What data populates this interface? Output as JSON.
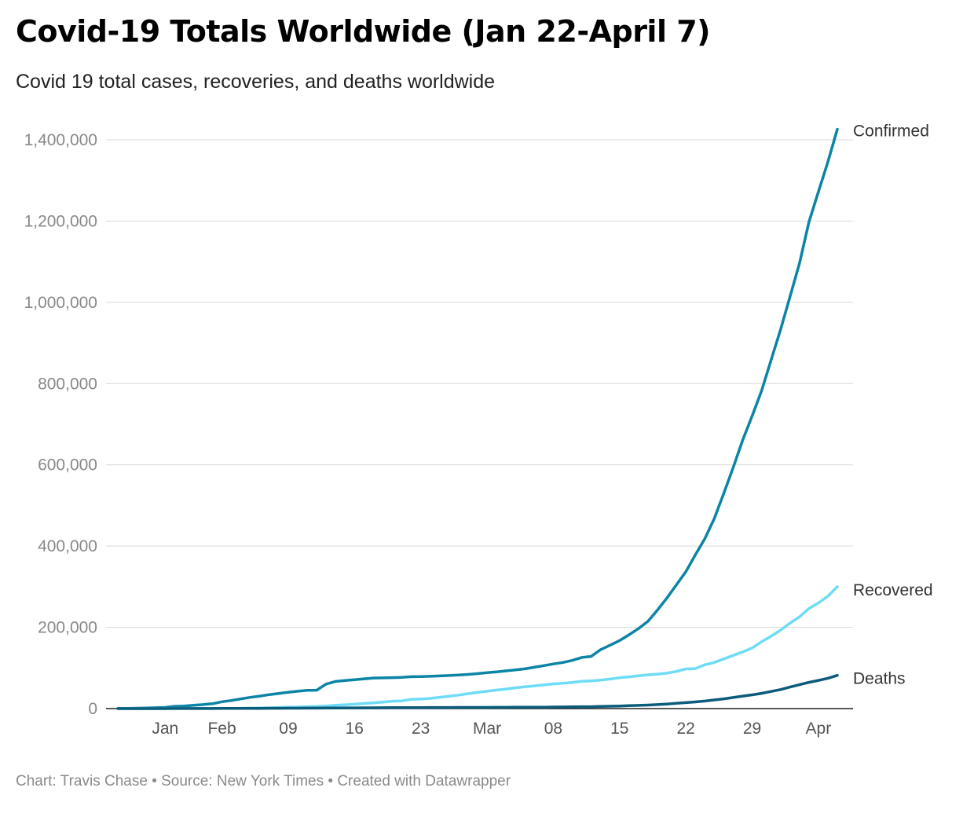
{
  "title": "Covid-19 Totals Worldwide (Jan 22-April 7)",
  "subtitle": "Covid 19 total cases, recoveries, and deaths worldwide",
  "footer": {
    "chart_by": "Chart: Travis Chase",
    "source": "Source: New York Times",
    "created_with": "Created with Datawrapper",
    "separator": "•"
  },
  "chart_data": {
    "type": "line",
    "title": "Covid-19 Totals Worldwide (Jan 22-April 7)",
    "subtitle": "Covid 19 total cases, recoveries, and deaths worldwide",
    "xlabel": "",
    "ylabel": "",
    "x_range": [
      "2020-01-22",
      "2020-04-07"
    ],
    "ylim": [
      0,
      1450000
    ],
    "yticks": [
      0,
      200000,
      400000,
      600000,
      800000,
      1000000,
      1200000,
      1400000
    ],
    "ytick_labels": [
      "0",
      "200,000",
      "400,000",
      "600,000",
      "800,000",
      "1,000,000",
      "1,200,000",
      "1,400,000"
    ],
    "xticks": [
      {
        "date": "2020-01-27",
        "label": "Jan"
      },
      {
        "date": "2020-02-02",
        "label": "Feb"
      },
      {
        "date": "2020-02-09",
        "label": "09"
      },
      {
        "date": "2020-02-16",
        "label": "16"
      },
      {
        "date": "2020-02-23",
        "label": "23"
      },
      {
        "date": "2020-03-01",
        "label": "Mar"
      },
      {
        "date": "2020-03-08",
        "label": "08"
      },
      {
        "date": "2020-03-15",
        "label": "15"
      },
      {
        "date": "2020-03-22",
        "label": "22"
      },
      {
        "date": "2020-03-29",
        "label": "29"
      },
      {
        "date": "2020-04-05",
        "label": "Apr"
      }
    ],
    "grid": true,
    "legend": "direct labels at line ends (right)",
    "series": [
      {
        "name": "Confirmed",
        "color": "#0b84a5",
        "points": [
          [
            "2020-01-22",
            555
          ],
          [
            "2020-01-23",
            654
          ],
          [
            "2020-01-24",
            941
          ],
          [
            "2020-01-25",
            1434
          ],
          [
            "2020-01-26",
            2118
          ],
          [
            "2020-01-27",
            2927
          ],
          [
            "2020-01-28",
            5578
          ],
          [
            "2020-01-29",
            6166
          ],
          [
            "2020-01-30",
            8234
          ],
          [
            "2020-01-31",
            9927
          ],
          [
            "2020-02-01",
            12038
          ],
          [
            "2020-02-02",
            16787
          ],
          [
            "2020-02-03",
            19881
          ],
          [
            "2020-02-04",
            23892
          ],
          [
            "2020-02-05",
            27635
          ],
          [
            "2020-02-06",
            30794
          ],
          [
            "2020-02-07",
            34391
          ],
          [
            "2020-02-08",
            37120
          ],
          [
            "2020-02-09",
            40150
          ],
          [
            "2020-02-10",
            42762
          ],
          [
            "2020-02-11",
            44802
          ],
          [
            "2020-02-12",
            45221
          ],
          [
            "2020-02-13",
            60368
          ],
          [
            "2020-02-14",
            66885
          ],
          [
            "2020-02-15",
            69030
          ],
          [
            "2020-02-16",
            71224
          ],
          [
            "2020-02-17",
            73258
          ],
          [
            "2020-02-18",
            75136
          ],
          [
            "2020-02-19",
            75639
          ],
          [
            "2020-02-20",
            76197
          ],
          [
            "2020-02-21",
            76819
          ],
          [
            "2020-02-22",
            78572
          ],
          [
            "2020-02-23",
            78958
          ],
          [
            "2020-02-24",
            79561
          ],
          [
            "2020-02-25",
            80406
          ],
          [
            "2020-02-26",
            81388
          ],
          [
            "2020-02-27",
            82746
          ],
          [
            "2020-02-28",
            84112
          ],
          [
            "2020-02-29",
            86011
          ],
          [
            "2020-03-01",
            88369
          ],
          [
            "2020-03-02",
            90306
          ],
          [
            "2020-03-03",
            92840
          ],
          [
            "2020-03-04",
            95120
          ],
          [
            "2020-03-05",
            97886
          ],
          [
            "2020-03-06",
            101801
          ],
          [
            "2020-03-07",
            105847
          ],
          [
            "2020-03-08",
            109821
          ],
          [
            "2020-03-09",
            113590
          ],
          [
            "2020-03-10",
            118620
          ],
          [
            "2020-03-11",
            125875
          ],
          [
            "2020-03-12",
            128352
          ],
          [
            "2020-03-13",
            145205
          ],
          [
            "2020-03-14",
            156101
          ],
          [
            "2020-03-15",
            167454
          ],
          [
            "2020-03-16",
            181574
          ],
          [
            "2020-03-17",
            197102
          ],
          [
            "2020-03-18",
            214821
          ],
          [
            "2020-03-19",
            242570
          ],
          [
            "2020-03-20",
            272208
          ],
          [
            "2020-03-21",
            304507
          ],
          [
            "2020-03-22",
            336953
          ],
          [
            "2020-03-23",
            378235
          ],
          [
            "2020-03-24",
            418045
          ],
          [
            "2020-03-25",
            467653
          ],
          [
            "2020-03-26",
            529591
          ],
          [
            "2020-03-27",
            593291
          ],
          [
            "2020-03-28",
            660693
          ],
          [
            "2020-03-29",
            720140
          ],
          [
            "2020-03-30",
            782389
          ],
          [
            "2020-03-31",
            857487
          ],
          [
            "2020-04-01",
            932605
          ],
          [
            "2020-04-02",
            1013466
          ],
          [
            "2020-04-03",
            1095917
          ],
          [
            "2020-04-04",
            1197405
          ],
          [
            "2020-04-05",
            1272115
          ],
          [
            "2020-04-06",
            1345101
          ],
          [
            "2020-04-07",
            1426096
          ]
        ]
      },
      {
        "name": "Recovered",
        "color": "#6fdcf7",
        "points": [
          [
            "2020-01-22",
            28
          ],
          [
            "2020-01-23",
            30
          ],
          [
            "2020-01-24",
            36
          ],
          [
            "2020-01-25",
            39
          ],
          [
            "2020-01-26",
            52
          ],
          [
            "2020-01-27",
            61
          ],
          [
            "2020-01-28",
            107
          ],
          [
            "2020-01-29",
            126
          ],
          [
            "2020-01-30",
            143
          ],
          [
            "2020-01-31",
            222
          ],
          [
            "2020-02-01",
            284
          ],
          [
            "2020-02-02",
            472
          ],
          [
            "2020-02-03",
            623
          ],
          [
            "2020-02-04",
            852
          ],
          [
            "2020-02-05",
            1124
          ],
          [
            "2020-02-06",
            1487
          ],
          [
            "2020-02-07",
            2011
          ],
          [
            "2020-02-08",
            2616
          ],
          [
            "2020-02-09",
            3244
          ],
          [
            "2020-02-10",
            3946
          ],
          [
            "2020-02-11",
            4683
          ],
          [
            "2020-02-12",
            5150
          ],
          [
            "2020-02-13",
            6295
          ],
          [
            "2020-02-14",
            8058
          ],
          [
            "2020-02-15",
            9395
          ],
          [
            "2020-02-16",
            10865
          ],
          [
            "2020-02-17",
            12583
          ],
          [
            "2020-02-18",
            14352
          ],
          [
            "2020-02-19",
            16121
          ],
          [
            "2020-02-20",
            18177
          ],
          [
            "2020-02-21",
            18890
          ],
          [
            "2020-02-22",
            22886
          ],
          [
            "2020-02-23",
            23394
          ],
          [
            "2020-02-24",
            25227
          ],
          [
            "2020-02-25",
            27905
          ],
          [
            "2020-02-26",
            30384
          ],
          [
            "2020-02-27",
            33277
          ],
          [
            "2020-02-28",
            36711
          ],
          [
            "2020-02-29",
            39782
          ],
          [
            "2020-03-01",
            42716
          ],
          [
            "2020-03-02",
            45602
          ],
          [
            "2020-03-03",
            48228
          ],
          [
            "2020-03-04",
            51170
          ],
          [
            "2020-03-05",
            53796
          ],
          [
            "2020-03-06",
            55865
          ],
          [
            "2020-03-07",
            58358
          ],
          [
            "2020-03-08",
            60694
          ],
          [
            "2020-03-09",
            62494
          ],
          [
            "2020-03-10",
            64404
          ],
          [
            "2020-03-11",
            67003
          ],
          [
            "2020-03-12",
            68324
          ],
          [
            "2020-03-13",
            70251
          ],
          [
            "2020-03-14",
            72624
          ],
          [
            "2020-03-15",
            76034
          ],
          [
            "2020-03-16",
            78088
          ],
          [
            "2020-03-17",
            80840
          ],
          [
            "2020-03-18",
            83207
          ],
          [
            "2020-03-19",
            84854
          ],
          [
            "2020-03-20",
            87256
          ],
          [
            "2020-03-21",
            91499
          ],
          [
            "2020-03-22",
            97704
          ],
          [
            "2020-03-23",
            98351
          ],
          [
            "2020-03-24",
            107890
          ],
          [
            "2020-03-25",
            113604
          ],
          [
            "2020-03-26",
            122150
          ],
          [
            "2020-03-27",
            130915
          ],
          [
            "2020-03-28",
            139415
          ],
          [
            "2020-03-29",
            149082
          ],
          [
            "2020-03-30",
            164566
          ],
          [
            "2020-03-31",
            178034
          ],
          [
            "2020-04-01",
            193177
          ],
          [
            "2020-04-02",
            210263
          ],
          [
            "2020-04-03",
            225796
          ],
          [
            "2020-04-04",
            246152
          ],
          [
            "2020-04-05",
            260012
          ],
          [
            "2020-04-06",
            276515
          ],
          [
            "2020-04-07",
            300054
          ]
        ]
      },
      {
        "name": "Deaths",
        "color": "#0b5c7a",
        "points": [
          [
            "2020-01-22",
            17
          ],
          [
            "2020-01-23",
            18
          ],
          [
            "2020-01-24",
            26
          ],
          [
            "2020-01-25",
            42
          ],
          [
            "2020-01-26",
            56
          ],
          [
            "2020-01-27",
            82
          ],
          [
            "2020-01-28",
            131
          ],
          [
            "2020-01-29",
            133
          ],
          [
            "2020-01-30",
            171
          ],
          [
            "2020-01-31",
            213
          ],
          [
            "2020-02-01",
            259
          ],
          [
            "2020-02-02",
            362
          ],
          [
            "2020-02-03",
            426
          ],
          [
            "2020-02-04",
            492
          ],
          [
            "2020-02-05",
            564
          ],
          [
            "2020-02-06",
            634
          ],
          [
            "2020-02-07",
            719
          ],
          [
            "2020-02-08",
            806
          ],
          [
            "2020-02-09",
            906
          ],
          [
            "2020-02-10",
            1013
          ],
          [
            "2020-02-11",
            1113
          ],
          [
            "2020-02-12",
            1118
          ],
          [
            "2020-02-13",
            1371
          ],
          [
            "2020-02-14",
            1523
          ],
          [
            "2020-02-15",
            1666
          ],
          [
            "2020-02-16",
            1770
          ],
          [
            "2020-02-17",
            1868
          ],
          [
            "2020-02-18",
            2007
          ],
          [
            "2020-02-19",
            2122
          ],
          [
            "2020-02-20",
            2247
          ],
          [
            "2020-02-21",
            2251
          ],
          [
            "2020-02-22",
            2458
          ],
          [
            "2020-02-23",
            2469
          ],
          [
            "2020-02-24",
            2629
          ],
          [
            "2020-02-25",
            2708
          ],
          [
            "2020-02-26",
            2770
          ],
          [
            "2020-02-27",
            2814
          ],
          [
            "2020-02-28",
            2872
          ],
          [
            "2020-02-29",
            2941
          ],
          [
            "2020-03-01",
            2996
          ],
          [
            "2020-03-02",
            3085
          ],
          [
            "2020-03-03",
            3160
          ],
          [
            "2020-03-04",
            3254
          ],
          [
            "2020-03-05",
            3348
          ],
          [
            "2020-03-06",
            3460
          ],
          [
            "2020-03-07",
            3558
          ],
          [
            "2020-03-08",
            3802
          ],
          [
            "2020-03-09",
            3988
          ],
          [
            "2020-03-10",
            4262
          ],
          [
            "2020-03-11",
            4615
          ],
          [
            "2020-03-12",
            4720
          ],
          [
            "2020-03-13",
            5404
          ],
          [
            "2020-03-14",
            5819
          ],
          [
            "2020-03-15",
            6440
          ],
          [
            "2020-03-16",
            7126
          ],
          [
            "2020-03-17",
            7905
          ],
          [
            "2020-03-18",
            8733
          ],
          [
            "2020-03-19",
            9867
          ],
          [
            "2020-03-20",
            11299
          ],
          [
            "2020-03-21",
            12973
          ],
          [
            "2020-03-22",
            14623
          ],
          [
            "2020-03-23",
            16497
          ],
          [
            "2020-03-24",
            18615
          ],
          [
            "2020-03-25",
            21181
          ],
          [
            "2020-03-26",
            23970
          ],
          [
            "2020-03-27",
            27198
          ],
          [
            "2020-03-28",
            30652
          ],
          [
            "2020-03-29",
            33925
          ],
          [
            "2020-03-30",
            37582
          ],
          [
            "2020-03-31",
            42107
          ],
          [
            "2020-04-01",
            46809
          ],
          [
            "2020-04-02",
            52983
          ],
          [
            "2020-04-03",
            58787
          ],
          [
            "2020-04-04",
            64606
          ],
          [
            "2020-04-05",
            69374
          ],
          [
            "2020-04-06",
            74565
          ],
          [
            "2020-04-07",
            81865
          ]
        ]
      }
    ]
  }
}
